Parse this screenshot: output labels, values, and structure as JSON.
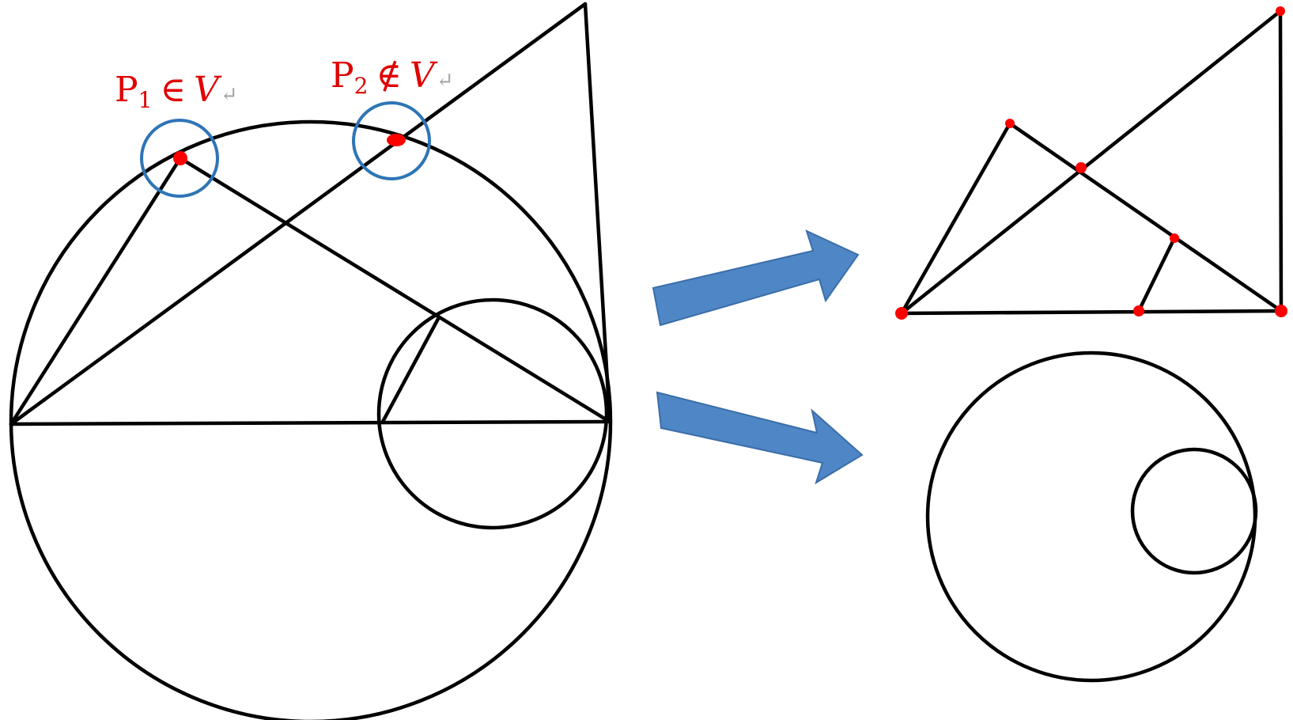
{
  "labels": {
    "p1": {
      "point": "P",
      "index": "1",
      "relation": "∈",
      "set": "V",
      "mark": "↵"
    },
    "p2": {
      "point": "P",
      "index": "2",
      "relation": "∉",
      "set": "V",
      "mark": "↵"
    }
  },
  "colors": {
    "stroke": "#000000",
    "point": "#ff0000",
    "label": "#e00000",
    "highlight": "#2e75b6",
    "arrow": "#4f86c6"
  },
  "icons": {
    "upper_arrow": "right-arrow-icon",
    "lower_arrow": "right-arrow-icon"
  }
}
